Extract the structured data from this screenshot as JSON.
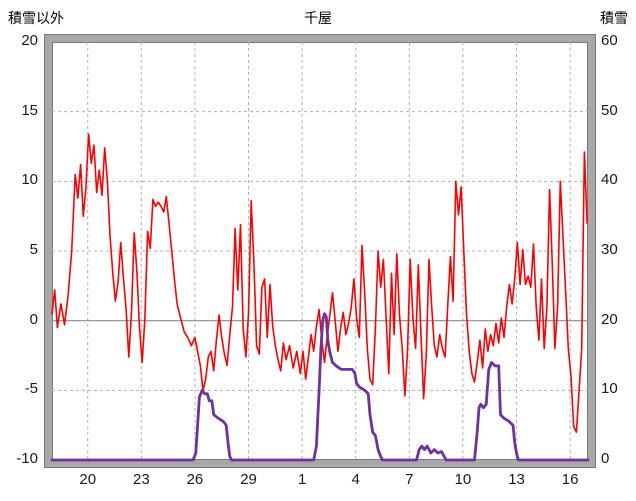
{
  "header": {
    "left_axis_title": "積雪以外",
    "station_title": "千屋",
    "right_axis_title": "積雪"
  },
  "chart_data": {
    "type": "line",
    "title": "千屋",
    "left_axis": {
      "label": "積雪以外",
      "ticks": [
        "20",
        "15",
        "10",
        "5",
        "0",
        "-5",
        "-10"
      ],
      "range": [
        -10,
        20
      ]
    },
    "right_axis": {
      "label": "積雪",
      "ticks": [
        "60",
        "50",
        "40",
        "30",
        "20",
        "10",
        "0"
      ],
      "range": [
        0,
        60
      ]
    },
    "x_axis": {
      "range": [
        18,
        48
      ],
      "ticks": [
        {
          "pos": 20,
          "label": "20"
        },
        {
          "pos": 23,
          "label": "23"
        },
        {
          "pos": 26,
          "label": "26"
        },
        {
          "pos": 29,
          "label": "29"
        },
        {
          "pos": 32,
          "label": "1"
        },
        {
          "pos": 35,
          "label": "4"
        },
        {
          "pos": 38,
          "label": "7"
        },
        {
          "pos": 41,
          "label": "10"
        },
        {
          "pos": 44,
          "label": "13"
        },
        {
          "pos": 47,
          "label": "16"
        }
      ]
    },
    "grid": {
      "horizontal": true,
      "vertical": true,
      "style": "dashed"
    },
    "colors": {
      "temperature": "#ff0000",
      "snow": "#7030a0",
      "grid": "#b3b3b3",
      "zero_line": "#8c8c8c",
      "frame": "#a8a8a8",
      "frame_edge": "#7a7a7a"
    },
    "series": [
      {
        "name": "積雪以外",
        "axis": "left",
        "color_key": "temperature",
        "width": 1.6,
        "points": [
          [
            18.0,
            0.5
          ],
          [
            18.15,
            2.2
          ],
          [
            18.3,
            -0.5
          ],
          [
            18.5,
            1.2
          ],
          [
            18.7,
            -0.3
          ],
          [
            18.9,
            1.8
          ],
          [
            19.1,
            5
          ],
          [
            19.3,
            10.5
          ],
          [
            19.45,
            8.8
          ],
          [
            19.6,
            11.2
          ],
          [
            19.75,
            7.5
          ],
          [
            19.9,
            9.5
          ],
          [
            20.05,
            13.4
          ],
          [
            20.2,
            11.3
          ],
          [
            20.35,
            12.6
          ],
          [
            20.5,
            9.2
          ],
          [
            20.65,
            10.8
          ],
          [
            20.8,
            9
          ],
          [
            20.95,
            12.4
          ],
          [
            21.1,
            10
          ],
          [
            21.25,
            6
          ],
          [
            21.4,
            3.5
          ],
          [
            21.55,
            1.4
          ],
          [
            21.7,
            2.8
          ],
          [
            21.85,
            5.6
          ],
          [
            22.0,
            3
          ],
          [
            22.15,
            0.8
          ],
          [
            22.3,
            -2.6
          ],
          [
            22.45,
            0.6
          ],
          [
            22.6,
            6.3
          ],
          [
            22.75,
            3.5
          ],
          [
            22.9,
            -0.5
          ],
          [
            23.05,
            -3
          ],
          [
            23.2,
            0.2
          ],
          [
            23.35,
            6.4
          ],
          [
            23.5,
            5.2
          ],
          [
            23.65,
            8.7
          ],
          [
            23.8,
            8.2
          ],
          [
            23.95,
            8.5
          ],
          [
            24.1,
            8.2
          ],
          [
            24.25,
            7.8
          ],
          [
            24.4,
            8.9
          ],
          [
            24.55,
            7
          ],
          [
            24.7,
            5
          ],
          [
            24.85,
            3
          ],
          [
            25.0,
            1.2
          ],
          [
            25.2,
            0.2
          ],
          [
            25.4,
            -0.8
          ],
          [
            25.6,
            -1.2
          ],
          [
            25.8,
            -1.8
          ],
          [
            26.0,
            -1.2
          ],
          [
            26.15,
            -2.2
          ],
          [
            26.3,
            -3.2
          ],
          [
            26.45,
            -5.0
          ],
          [
            26.6,
            -4.2
          ],
          [
            26.75,
            -2.6
          ],
          [
            26.9,
            -2.2
          ],
          [
            27.05,
            -3.6
          ],
          [
            27.2,
            -1.4
          ],
          [
            27.35,
            0.4
          ],
          [
            27.5,
            -1.2
          ],
          [
            27.65,
            -2.4
          ],
          [
            27.8,
            -3.2
          ],
          [
            27.95,
            -1
          ],
          [
            28.1,
            1
          ],
          [
            28.25,
            6.6
          ],
          [
            28.4,
            2.2
          ],
          [
            28.55,
            6.9
          ],
          [
            28.7,
            -0.6
          ],
          [
            28.85,
            -2.6
          ],
          [
            29.0,
            0.5
          ],
          [
            29.15,
            8.6
          ],
          [
            29.3,
            4.2
          ],
          [
            29.45,
            -1.8
          ],
          [
            29.6,
            -2.4
          ],
          [
            29.75,
            2.4
          ],
          [
            29.9,
            3
          ],
          [
            30.05,
            -1.2
          ],
          [
            30.2,
            2.6
          ],
          [
            30.35,
            -0.4
          ],
          [
            30.5,
            -1.8
          ],
          [
            30.65,
            -2.8
          ],
          [
            30.8,
            -3.6
          ],
          [
            30.95,
            -1.6
          ],
          [
            31.1,
            -2.8
          ],
          [
            31.3,
            -1.8
          ],
          [
            31.5,
            -3.4
          ],
          [
            31.7,
            -2.2
          ],
          [
            31.9,
            -3.8
          ],
          [
            32.05,
            -2.2
          ],
          [
            32.2,
            -4.2
          ],
          [
            32.35,
            -2.6
          ],
          [
            32.5,
            -1
          ],
          [
            32.65,
            -2.2
          ],
          [
            32.8,
            -0.4
          ],
          [
            32.95,
            0.8
          ],
          [
            33.1,
            -1.4
          ],
          [
            33.25,
            -3
          ],
          [
            33.4,
            -1.2
          ],
          [
            33.55,
            0.4
          ],
          [
            33.7,
            2
          ],
          [
            33.85,
            0
          ],
          [
            34.0,
            -2.2
          ],
          [
            34.15,
            -0.6
          ],
          [
            34.3,
            0.6
          ],
          [
            34.45,
            -1
          ],
          [
            34.6,
            -0.2
          ],
          [
            34.75,
            1
          ],
          [
            34.9,
            3
          ],
          [
            35.05,
            0.2
          ],
          [
            35.2,
            -1.2
          ],
          [
            35.35,
            5.4
          ],
          [
            35.5,
            2
          ],
          [
            35.65,
            -2
          ],
          [
            35.8,
            -4.2
          ],
          [
            35.95,
            -4.6
          ],
          [
            36.1,
            -0.5
          ],
          [
            36.25,
            5
          ],
          [
            36.4,
            2.4
          ],
          [
            36.55,
            4.4
          ],
          [
            36.7,
            0.2
          ],
          [
            36.85,
            -3.8
          ],
          [
            37.0,
            3.4
          ],
          [
            37.15,
            -1
          ],
          [
            37.3,
            4.8
          ],
          [
            37.45,
            0.4
          ],
          [
            37.6,
            -2
          ],
          [
            37.75,
            -5.4
          ],
          [
            37.9,
            -2.2
          ],
          [
            38.05,
            4.4
          ],
          [
            38.2,
            0.2
          ],
          [
            38.35,
            -2
          ],
          [
            38.5,
            4
          ],
          [
            38.65,
            -0.8
          ],
          [
            38.8,
            -5.6
          ],
          [
            38.95,
            -2.4
          ],
          [
            39.1,
            4.4
          ],
          [
            39.25,
            1
          ],
          [
            39.4,
            -1.8
          ],
          [
            39.55,
            -2.6
          ],
          [
            39.7,
            -1
          ],
          [
            39.85,
            -2
          ],
          [
            40.0,
            -2.6
          ],
          [
            40.15,
            1
          ],
          [
            40.3,
            4.6
          ],
          [
            40.45,
            1.4
          ],
          [
            40.6,
            10
          ],
          [
            40.75,
            7.6
          ],
          [
            40.9,
            9.6
          ],
          [
            41.05,
            5
          ],
          [
            41.2,
            0.5
          ],
          [
            41.35,
            -2.2
          ],
          [
            41.5,
            -3.8
          ],
          [
            41.65,
            -4.4
          ],
          [
            41.8,
            -3
          ],
          [
            41.95,
            -1.4
          ],
          [
            42.1,
            -3.4
          ],
          [
            42.25,
            -0.6
          ],
          [
            42.4,
            -2.2
          ],
          [
            42.55,
            -1
          ],
          [
            42.7,
            -1.8
          ],
          [
            42.85,
            -0.2
          ],
          [
            43.0,
            -1.6
          ],
          [
            43.15,
            0.2
          ],
          [
            43.3,
            -1.2
          ],
          [
            43.45,
            1
          ],
          [
            43.6,
            2.6
          ],
          [
            43.75,
            1.2
          ],
          [
            43.9,
            3
          ],
          [
            44.05,
            5.6
          ],
          [
            44.2,
            2.6
          ],
          [
            44.35,
            5.1
          ],
          [
            44.5,
            2.6
          ],
          [
            44.65,
            3.2
          ],
          [
            44.8,
            2.4
          ],
          [
            44.95,
            5.5
          ],
          [
            45.1,
            1
          ],
          [
            45.25,
            -1.4
          ],
          [
            45.4,
            3
          ],
          [
            45.55,
            -2
          ],
          [
            45.7,
            1
          ],
          [
            45.85,
            9.4
          ],
          [
            46.0,
            4
          ],
          [
            46.15,
            -2
          ],
          [
            46.3,
            1
          ],
          [
            46.45,
            10
          ],
          [
            46.6,
            6
          ],
          [
            46.75,
            2
          ],
          [
            46.9,
            -2
          ],
          [
            47.05,
            -4
          ],
          [
            47.2,
            -7.6
          ],
          [
            47.35,
            -8
          ],
          [
            47.5,
            -5
          ],
          [
            47.65,
            -2
          ],
          [
            47.8,
            12.1
          ],
          [
            47.95,
            7
          ]
        ]
      },
      {
        "name": "積雪",
        "axis": "right",
        "color_key": "snow",
        "width": 2.8,
        "points": [
          [
            18.0,
            0
          ],
          [
            25.9,
            0
          ],
          [
            26.05,
            1
          ],
          [
            26.15,
            5
          ],
          [
            26.25,
            9
          ],
          [
            26.4,
            10
          ],
          [
            26.55,
            9.5
          ],
          [
            26.7,
            9.5
          ],
          [
            26.8,
            8.5
          ],
          [
            26.95,
            8.5
          ],
          [
            27.05,
            6.5
          ],
          [
            27.3,
            6
          ],
          [
            27.6,
            5.5
          ],
          [
            27.75,
            5
          ],
          [
            27.85,
            2.5
          ],
          [
            27.95,
            0.5
          ],
          [
            28.05,
            0
          ],
          [
            32.65,
            0
          ],
          [
            32.8,
            2
          ],
          [
            32.95,
            10
          ],
          [
            33.05,
            16
          ],
          [
            33.15,
            20
          ],
          [
            33.25,
            21
          ],
          [
            33.35,
            20.5
          ],
          [
            33.45,
            17
          ],
          [
            33.55,
            15.5
          ],
          [
            33.7,
            14
          ],
          [
            33.9,
            13.5
          ],
          [
            34.2,
            13
          ],
          [
            34.5,
            13
          ],
          [
            34.8,
            13
          ],
          [
            34.95,
            12.5
          ],
          [
            35.05,
            11
          ],
          [
            35.2,
            10.5
          ],
          [
            35.5,
            10
          ],
          [
            35.7,
            9.5
          ],
          [
            35.8,
            6.5
          ],
          [
            35.95,
            4
          ],
          [
            36.1,
            3.5
          ],
          [
            36.25,
            1.5
          ],
          [
            36.4,
            0.5
          ],
          [
            36.5,
            0
          ],
          [
            38.4,
            0
          ],
          [
            38.55,
            1.5
          ],
          [
            38.7,
            2
          ],
          [
            38.85,
            1.5
          ],
          [
            39.0,
            2
          ],
          [
            39.2,
            1
          ],
          [
            39.4,
            1.5
          ],
          [
            39.6,
            1
          ],
          [
            39.8,
            1.2
          ],
          [
            39.95,
            0.5
          ],
          [
            40.05,
            0
          ],
          [
            41.65,
            0
          ],
          [
            41.8,
            4
          ],
          [
            41.9,
            7.5
          ],
          [
            42.0,
            8
          ],
          [
            42.15,
            7.5
          ],
          [
            42.3,
            8
          ],
          [
            42.45,
            13
          ],
          [
            42.6,
            14
          ],
          [
            42.8,
            13.5
          ],
          [
            43.0,
            13.5
          ],
          [
            43.1,
            6.5
          ],
          [
            43.3,
            6
          ],
          [
            43.6,
            5.5
          ],
          [
            43.8,
            5
          ],
          [
            43.9,
            2.5
          ],
          [
            44.0,
            1
          ],
          [
            44.1,
            0
          ],
          [
            48.0,
            0
          ]
        ]
      }
    ]
  }
}
